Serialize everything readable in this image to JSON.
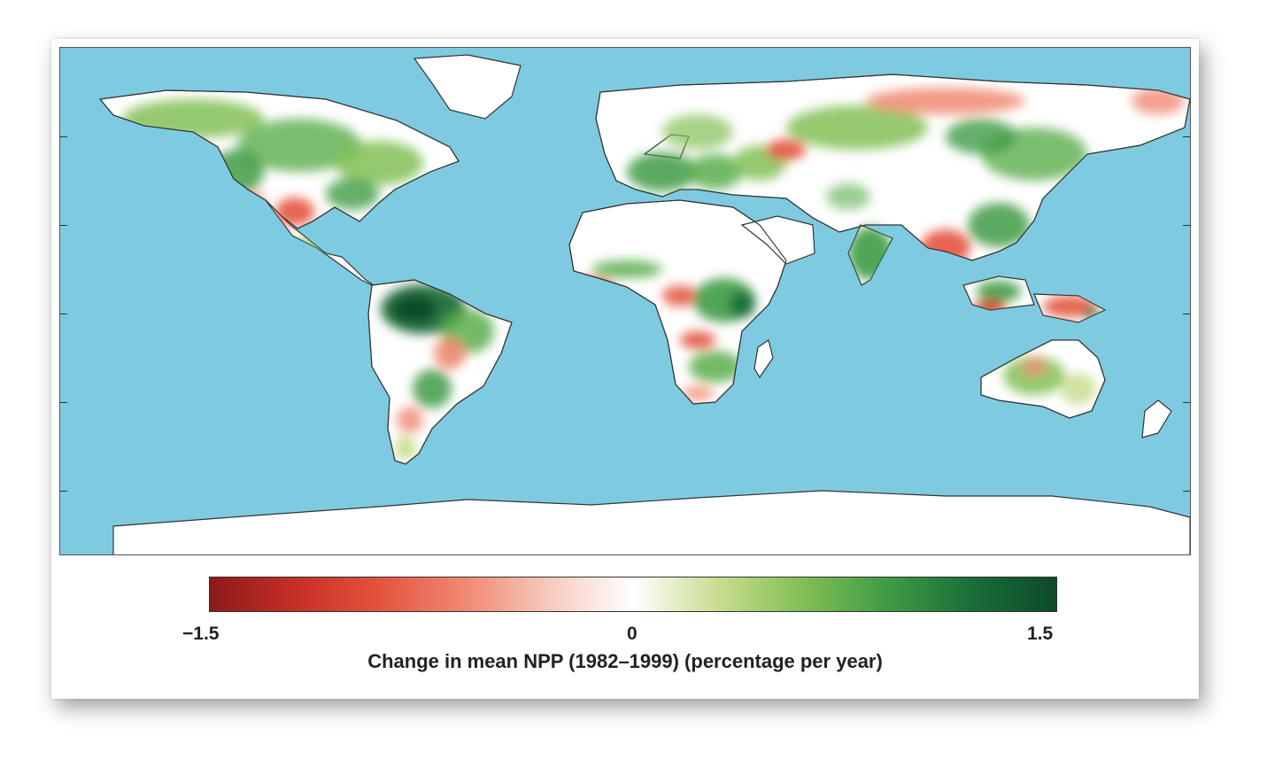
{
  "figure": {
    "colorbar": {
      "min_label": "−1.5",
      "mid_label": "0",
      "max_label": "1.5",
      "title": "Change in mean NPP (1982–1999) (percentage per year)",
      "stops": [
        "#8b1a1a",
        "#c62f25",
        "#e4533e",
        "#f08872",
        "#f7c9bd",
        "#ffffff",
        "#c9dd8f",
        "#82bf55",
        "#3f9b45",
        "#1a6e39",
        "#0d4a2a"
      ]
    },
    "colors": {
      "ocean": "#7ecbe1",
      "land_neutral": "#ffffff",
      "green_light": "#b7d98a",
      "green_mid": "#5aae4e",
      "green_dark": "#1f6f36",
      "red_light": "#f3a497",
      "red_mid": "#e5533e",
      "red_dark": "#b32a22"
    }
  }
}
